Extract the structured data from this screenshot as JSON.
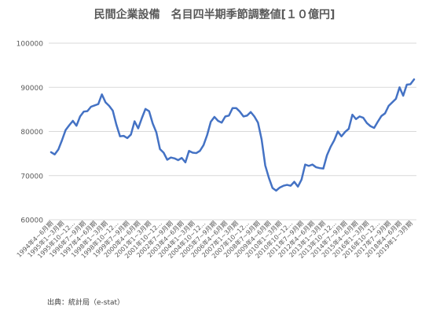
{
  "chart_data": {
    "type": "line",
    "title": "民間企業設備　名目四半期季節調整値[１０億円]",
    "source": "出典：統計局（e-stat）",
    "xlabel": "",
    "ylabel": "",
    "ylim": [
      60000,
      100000
    ],
    "yticks": [
      "60000",
      "70000",
      "80000",
      "90000",
      "100000"
    ],
    "grid": true,
    "line_color": "#4472C4",
    "x_tick_labels": [
      "1994年4~6月期",
      "1995年1~3月期",
      "1995年10~12...",
      "1996年7~9月期",
      "1997年4~6月期",
      "1998年1~3月期",
      "1998年10~12...",
      "1999年7~9月期",
      "2000年4~6月期",
      "2001年1~3月期",
      "2001年10~12...",
      "2002年7~9月期",
      "2003年4~6月期",
      "2004年1~3月期",
      "2004年10~12...",
      "2005年7~9月期",
      "2006年4~6月期",
      "2007年1~3月期",
      "2007年10~12...",
      "2008年7~9月期",
      "2009年4~6月期",
      "2010年1~3月期",
      "2010年10~12...",
      "2011年7~9月期",
      "2012年4~6月期",
      "2013年1~3月期",
      "2013年10~12...",
      "2014年7~9月期",
      "2015年4~6月期",
      "2016年1~3月期",
      "2016年10~12...",
      "2017年7~9月期",
      "2018年4~6月期",
      "2019年1~3月期"
    ],
    "series": [
      {
        "values": [
          75300,
          74800,
          75900,
          78000,
          80300,
          81400,
          82400,
          81300,
          83400,
          84500,
          84600,
          85600,
          85900,
          86200,
          88400,
          86600,
          85800,
          84700,
          81500,
          78900,
          79000,
          78500,
          79300,
          82300,
          80700,
          83000,
          85100,
          84600,
          81800,
          79800,
          76000,
          75200,
          73600,
          74100,
          73900,
          73500,
          74000,
          73000,
          75600,
          75200,
          75100,
          75600,
          76900,
          79200,
          82200,
          83300,
          82400,
          82000,
          83400,
          83600,
          85300,
          85300,
          84500,
          83400,
          83600,
          84400,
          83400,
          82000,
          78200,
          72300,
          69500,
          67200,
          66600,
          67300,
          67700,
          67900,
          67700,
          68600,
          67500,
          69100,
          72500,
          72200,
          72500,
          71900,
          71700,
          71600,
          74600,
          76500,
          78000,
          80000,
          78900,
          79900,
          80600,
          83800,
          82800,
          83400,
          83100,
          81900,
          81200,
          80800,
          82200,
          83500,
          84100,
          85800,
          86600,
          87400,
          90000,
          88100,
          90600,
          90700,
          91800
        ]
      }
    ]
  }
}
